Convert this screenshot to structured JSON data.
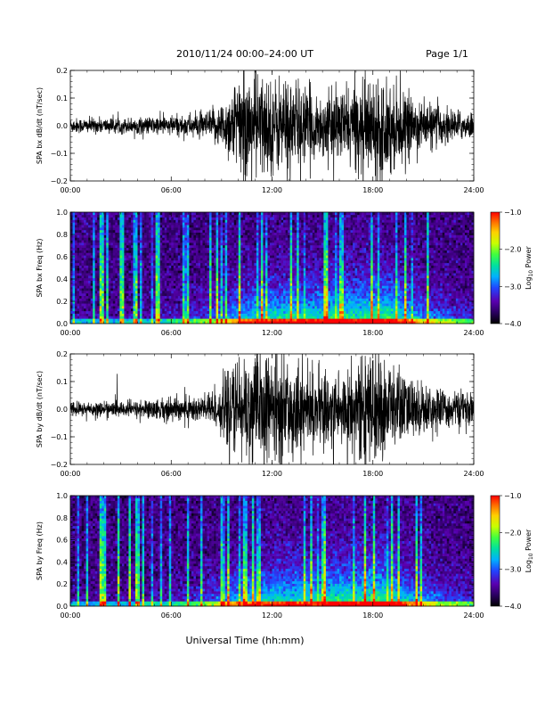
{
  "header": {
    "title": "2010/11/24  00:00–24:00 UT",
    "page_label": "Page 1/1"
  },
  "footer": {
    "xlabel": "Universal Time (hh:mm)"
  },
  "colors": {
    "trace": "#000000",
    "spectrogram_colormap": [
      "#000000",
      "#2a0060",
      "#5a00b0",
      "#2244ff",
      "#00b0ff",
      "#00e0a0",
      "#40ff40",
      "#c8ff00",
      "#ffd000",
      "#ff7000",
      "#ff0000"
    ]
  },
  "chart_data": [
    {
      "type": "line",
      "panel": "bx-waveform",
      "ylabel": "SPA bx dB/dt (nT/sec)",
      "x": [
        "00:00",
        "06:00",
        "12:00",
        "18:00",
        "24:00"
      ],
      "xlim": [
        0,
        24
      ],
      "ylim": [
        -0.2,
        0.2
      ],
      "yticks": [
        "0.2",
        "0.1",
        "0.0",
        "−0.1",
        "−0.2"
      ],
      "amplitude_envelope": {
        "hours": [
          0,
          3,
          5,
          6,
          8,
          9,
          10,
          11,
          12,
          13,
          14,
          15,
          16,
          17,
          18,
          19,
          20,
          21,
          22,
          23,
          24
        ],
        "amplitude": [
          0.03,
          0.03,
          0.035,
          0.04,
          0.05,
          0.09,
          0.2,
          0.22,
          0.18,
          0.2,
          0.15,
          0.12,
          0.14,
          0.16,
          0.2,
          0.18,
          0.12,
          0.09,
          0.08,
          0.06,
          0.05
        ]
      }
    },
    {
      "type": "heatmap",
      "panel": "bx-spectrogram",
      "ylabel": "SPA bx Freq (Hz)",
      "x": [
        "00:00",
        "06:00",
        "12:00",
        "18:00",
        "24:00"
      ],
      "xlim": [
        0,
        24
      ],
      "ylim": [
        0.0,
        1.0
      ],
      "yticks": [
        "1.0",
        "0.8",
        "0.6",
        "0.4",
        "0.2",
        "0.0"
      ],
      "colorbar_label": "Log10 Power",
      "colorbar_ticks": [
        "−1.0",
        "−2.0",
        "−3.0",
        "−4.0"
      ],
      "colorbar_range": [
        -4.0,
        -1.0
      ]
    },
    {
      "type": "line",
      "panel": "by-waveform",
      "ylabel": "SPA by dB/dt (nT/sec)",
      "x": [
        "00:00",
        "06:00",
        "12:00",
        "18:00",
        "24:00"
      ],
      "xlim": [
        0,
        24
      ],
      "ylim": [
        -0.2,
        0.2
      ],
      "yticks": [
        "0.2",
        "0.1",
        "0.0",
        "−0.1",
        "−0.2"
      ],
      "amplitude_envelope": {
        "hours": [
          0,
          3,
          5,
          6,
          8,
          9,
          10,
          11,
          12,
          13,
          14,
          15,
          16,
          17,
          18,
          19,
          20,
          21,
          22,
          23,
          24
        ],
        "amplitude": [
          0.03,
          0.03,
          0.04,
          0.05,
          0.06,
          0.1,
          0.2,
          0.22,
          0.2,
          0.2,
          0.16,
          0.14,
          0.16,
          0.18,
          0.22,
          0.2,
          0.13,
          0.1,
          0.08,
          0.07,
          0.06
        ]
      }
    },
    {
      "type": "heatmap",
      "panel": "by-spectrogram",
      "ylabel": "SPA by Freq (Hz)",
      "x": [
        "00:00",
        "06:00",
        "12:00",
        "18:00",
        "24:00"
      ],
      "xlim": [
        0,
        24
      ],
      "ylim": [
        0.0,
        1.0
      ],
      "yticks": [
        "1.0",
        "0.8",
        "0.6",
        "0.4",
        "0.2",
        "0.0"
      ],
      "colorbar_label": "Log10 Power",
      "colorbar_ticks": [
        "−1.0",
        "−2.0",
        "−3.0",
        "−4.0"
      ],
      "colorbar_range": [
        -4.0,
        -1.0
      ]
    }
  ]
}
